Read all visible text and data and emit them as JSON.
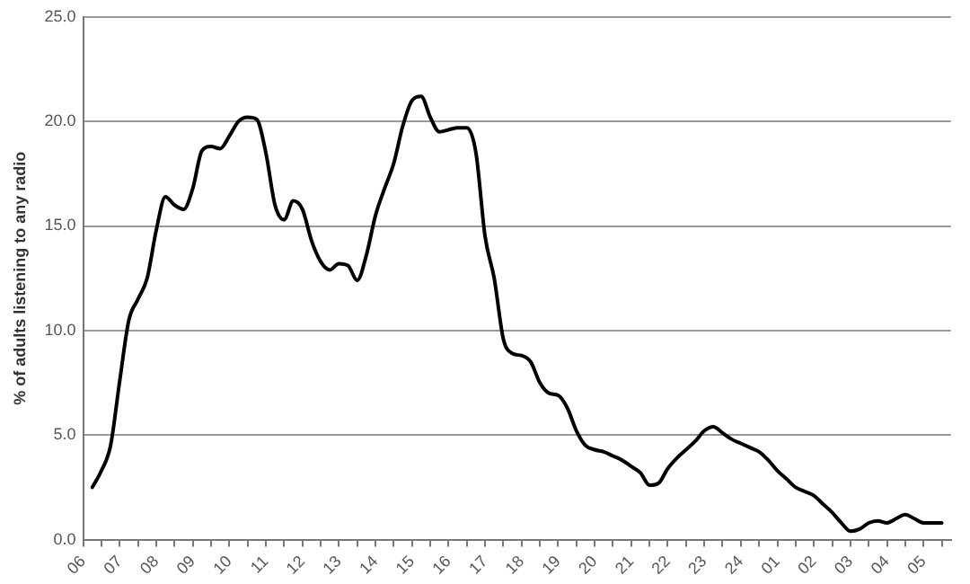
{
  "chart_data": {
    "type": "line",
    "ylabel": "% of adults listening to any radio",
    "categories": [
      "06",
      null,
      null,
      null,
      "07",
      null,
      null,
      null,
      "08",
      null,
      null,
      null,
      "09",
      null,
      null,
      null,
      "10",
      null,
      null,
      null,
      "11",
      null,
      null,
      null,
      "12",
      null,
      null,
      null,
      "13",
      null,
      null,
      null,
      "14",
      null,
      null,
      null,
      "15",
      null,
      null,
      null,
      "16",
      null,
      null,
      null,
      "17",
      null,
      null,
      null,
      "18",
      null,
      null,
      null,
      "19",
      null,
      null,
      null,
      "20",
      null,
      null,
      null,
      "21",
      null,
      null,
      null,
      "22",
      null,
      null,
      null,
      "23",
      null,
      null,
      null,
      "24",
      null,
      null,
      null,
      "01",
      null,
      null,
      null,
      "02",
      null,
      null,
      null,
      "03",
      null,
      null,
      null,
      "04",
      null,
      null,
      null,
      "05",
      null,
      null,
      null
    ],
    "series": [
      {
        "color": "#000000",
        "values": [
          null,
          2.5,
          3.3,
          4.5,
          7.6,
          10.5,
          11.5,
          12.5,
          14.8,
          16.4,
          16.0,
          15.8,
          16.8,
          18.6,
          18.8,
          18.7,
          19.3,
          20.0,
          20.2,
          20.1,
          18.5,
          16.0,
          15.3,
          16.2,
          15.8,
          14.3,
          13.3,
          12.9,
          13.2,
          13.1,
          12.4,
          13.6,
          15.5,
          16.8,
          18.0,
          19.8,
          21.0,
          21.2,
          20.2,
          19.5,
          19.6,
          19.7,
          19.7,
          18.5,
          14.5,
          12.5,
          9.6,
          8.9,
          8.8,
          8.5,
          7.5,
          7.0,
          6.9,
          6.3,
          5.2,
          4.5,
          4.3,
          4.2,
          4.0,
          3.8,
          3.5,
          3.2,
          2.6,
          2.7,
          3.4,
          3.9,
          4.3,
          4.7,
          5.2,
          5.4,
          5.1,
          4.8,
          4.6,
          4.4,
          4.2,
          3.8,
          3.3,
          2.9,
          2.5,
          2.3,
          2.1,
          1.7,
          1.3,
          0.8,
          0.4,
          0.5,
          0.8,
          0.9,
          0.8,
          1.0,
          1.2,
          1.0,
          0.8,
          0.8,
          0.8,
          null
        ]
      }
    ],
    "ylim": [
      0,
      25
    ],
    "yticks": [
      {
        "value": 0,
        "label": "0.0"
      },
      {
        "value": 5,
        "label": "5.0"
      },
      {
        "value": 10,
        "label": "10.0"
      },
      {
        "value": 15,
        "label": "15.0"
      },
      {
        "value": 20,
        "label": "20.0"
      },
      {
        "value": 25,
        "label": "25.0"
      }
    ],
    "grid": "y",
    "legend": false,
    "marker": "none",
    "line_style": "solid"
  }
}
